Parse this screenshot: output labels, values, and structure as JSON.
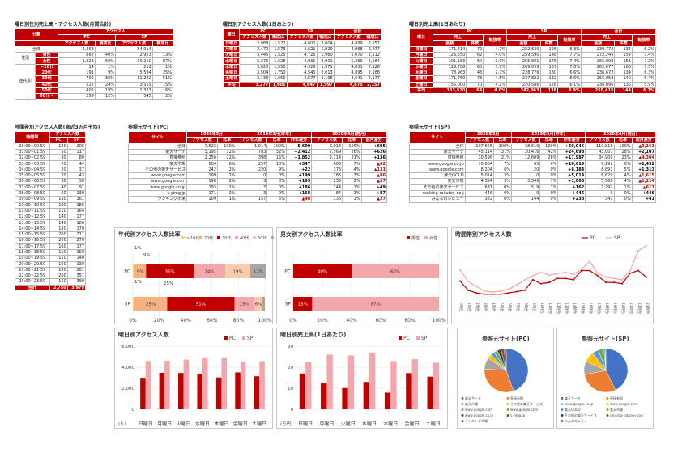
{
  "colors": {
    "red": "#c00000",
    "pink": "#f4a6ad",
    "light": "#fadbd8"
  },
  "t1": {
    "title": "曜日別性別売上高・アクセス人数(月間合計)",
    "head1": [
      "分類",
      "アクセス人"
    ],
    "head2": [
      "PC",
      "SP"
    ],
    "head3": [
      "アクセス人数",
      "構成比",
      "アクセス人数",
      "構成比"
    ],
    "rows": [
      [
        "全体",
        "",
        "4,468",
        "-",
        "54,914",
        "-"
      ],
      [
        "性別",
        "男性",
        "867",
        "40%",
        "2,953",
        "13%"
      ],
      [
        "",
        "女性",
        "1,323",
        "60%",
        "19,210",
        "87%"
      ],
      [
        "年代別",
        "～10代",
        "14",
        "1%",
        "212",
        "1%"
      ],
      [
        "",
        "20代",
        "191",
        "9%",
        "5,594",
        "25%"
      ],
      [
        "",
        "30代",
        "796",
        "36%",
        "11,282",
        "51%"
      ],
      [
        "",
        "40代",
        "522",
        "24%",
        "3,319",
        "15%"
      ],
      [
        "",
        "50代",
        "405",
        "19%",
        "1,323",
        "6%"
      ],
      [
        "",
        "60代～",
        "259",
        "12%",
        "545",
        "2%"
      ]
    ]
  },
  "t2": {
    "title": "曜日別アクセス人数(1日あたり)",
    "head1": [
      "曜日",
      "PC",
      "SP",
      "合計"
    ],
    "head2": [
      "アクセス人数",
      "構成比",
      "アクセス人数",
      "構成比",
      "アクセス人数",
      "構成比"
    ],
    "rows": [
      [
        "日曜日",
        "2,988",
        "1,522",
        "4,600",
        "2,004",
        "4,899",
        "2,157"
      ],
      [
        "月曜日",
        "3,470",
        "1,573",
        "4,621",
        "1,920",
        "4,968",
        "2,077"
      ],
      [
        "火曜日",
        "3,445",
        "1,525",
        "4,726",
        "1,960",
        "5,070",
        "2,112"
      ],
      [
        "水曜日",
        "3,375",
        "1,628",
        "4,931",
        "2,001",
        "5,269",
        "2,164"
      ],
      [
        "木曜日",
        "3,020",
        "1,550",
        "4,929",
        "1,971",
        "4,831",
        "2,126"
      ],
      [
        "金曜日",
        "3,504",
        "1,750",
        "4,545",
        "2,013",
        "4,895",
        "2,188"
      ],
      [
        "土曜日",
        "3,138",
        "1,660",
        "4,577",
        "2,108",
        "4,641",
        "2,177"
      ]
    ],
    "avg": [
      "平均",
      "3,277",
      "1,601",
      "4,647",
      "1,997",
      "4,875",
      "2,157"
    ]
  },
  "t3": {
    "title": "曜日別売上高(1日あたり)",
    "head1": [
      "曜日",
      "PC",
      "SP",
      "合計"
    ],
    "head2": [
      "売上",
      "転換率",
      "売上",
      "転換率",
      "売上",
      "転換率"
    ],
    "head3": [
      "金額",
      "件数",
      "金額",
      "件数",
      "金額",
      "件数"
    ],
    "rows": [
      [
        "日曜日",
        "171,414",
        "72",
        "4.7%",
        "222,630",
        "126",
        "6.3%",
        "239,772",
        "134",
        "6.2%"
      ],
      [
        "月曜日",
        "126,550",
        "62",
        "4.0%",
        "259,590",
        "148",
        "7.7%",
        "272,245",
        "154",
        "7.4%"
      ],
      [
        "火曜日",
        "101,163",
        "60",
        "3.9%",
        "255,881",
        "145",
        "7.4%",
        "265,998",
        "151",
        "7.2%"
      ],
      [
        "水曜日",
        "129,788",
        "60",
        "3.7%",
        "269,099",
        "157",
        "7.8%",
        "282,077",
        "163",
        "7.5%"
      ],
      [
        "木曜日",
        "78,963",
        "43",
        "2.7%",
        "228,776",
        "130",
        "6.6%",
        "236,672",
        "134",
        "6.3%"
      ],
      [
        "金曜日",
        "171,760",
        "78",
        "4.5%",
        "237,882",
        "132",
        "6.6%",
        "255,058",
        "140",
        "6.4%"
      ],
      [
        "土曜日",
        "155,000",
        "70",
        "4.2%",
        "220,586",
        "128",
        "6.1%",
        "236,096",
        "136",
        "5.9%"
      ]
    ],
    "avg": [
      "平均",
      "133,520",
      "64",
      "4.0%",
      "242,063",
      "138",
      "6.9%",
      "255,415",
      "144",
      "6.7%"
    ]
  },
  "t4": {
    "title": "時間帯別アクセス人数(直近3ヵ月平均)",
    "head1": [
      "時間帯",
      "アクセス人数"
    ],
    "head2": [
      "PC",
      "SP"
    ],
    "rows": [
      [
        "00:00~00:59",
        "120",
        "205"
      ],
      [
        "01:00~01:59",
        "50",
        "117"
      ],
      [
        "02:00~02:59",
        "30",
        "80"
      ],
      [
        "03:00~03:59",
        "20",
        "44"
      ],
      [
        "04:00~04:59",
        "20",
        "37"
      ],
      [
        "05:00~05:59",
        "20",
        "43"
      ],
      [
        "06:00~06:59",
        "30",
        "58"
      ],
      [
        "07:00~07:59",
        "40",
        "91"
      ],
      [
        "08:00~08:59",
        "50",
        "130"
      ],
      [
        "09:00~09:59",
        "130",
        "161"
      ],
      [
        "10:00~10:59",
        "100",
        "186"
      ],
      [
        "11:00~11:59",
        "110",
        "164"
      ],
      [
        "12:00~12:59",
        "140",
        "177"
      ],
      [
        "13:00~13:59",
        "140",
        "186"
      ],
      [
        "14:00~14:59",
        "130",
        "170"
      ],
      [
        "15:00~15:59",
        "200",
        "211"
      ],
      [
        "16:00~16:59",
        "200",
        "270"
      ],
      [
        "17:00~17:59",
        "160",
        "177"
      ],
      [
        "18:00~18:59",
        "110",
        "150"
      ],
      [
        "19:00~19:59",
        "110",
        "140"
      ],
      [
        "20:00~20:59",
        "100",
        "130"
      ],
      [
        "21:00~21:59",
        "180",
        "201"
      ],
      [
        "22:00~22:59",
        "200",
        "351"
      ],
      [
        "23:00~23:59",
        "150",
        "390"
      ]
    ],
    "sum": [
      "合計",
      "2,750",
      "3,979"
    ]
  },
  "t5": {
    "title": "参照元サイト(PC)",
    "head1": [
      "サイト",
      "2020年5月",
      "2019年5月(昨年)",
      "2020年4月(前月)"
    ],
    "head2": [
      "アクセス数",
      "比率",
      "アクセス数",
      "比率",
      "昨年差分",
      "アクセス数",
      "比率",
      "前月差分"
    ],
    "rows": [
      [
        "全体",
        "7,523",
        "100%",
        "1,914",
        "100%",
        "+5,609",
        "6,918",
        "100%",
        "+605"
      ],
      [
        "楽天サーチ",
        "3,195",
        "32%",
        "783",
        "32%",
        "+2,412",
        "2,569",
        "26%",
        "+626"
      ],
      [
        "直接参照",
        "2,250",
        "22%",
        "398",
        "15%",
        "+1,852",
        "2,114",
        "21%",
        "+136"
      ],
      [
        "楽天市場",
        "604",
        "6%",
        "257",
        "10%",
        "+347",
        "666",
        "7%",
        "▲62"
      ],
      [
        "その他の楽天サービス",
        "242",
        "2%",
        "220",
        "9%",
        "+22",
        "373",
        "4%",
        "▲131"
      ],
      [
        "www.google.com",
        "199",
        "2%",
        "0",
        "0%",
        "+199",
        "285",
        "3%",
        "▲86"
      ],
      [
        "www.google.com",
        "198",
        "2%",
        "3",
        "0%",
        "+195",
        "235",
        "2%",
        "▲37"
      ],
      [
        "www.google.co.jp",
        "193",
        "2%",
        "7",
        "0%",
        "+186",
        "144",
        "1%",
        "+49"
      ],
      [
        "s.yimg.jp",
        "171",
        "2%",
        "3",
        "0%",
        "+168",
        "84",
        "1%",
        "+87"
      ],
      [
        "ランキング市場",
        "109",
        "1%",
        "157",
        "6%",
        "▲48",
        "136",
        "1%",
        "▲27"
      ]
    ]
  },
  "t6": {
    "title": "参照元サイト(SP)",
    "head1": [
      "サイト",
      "2020年5月",
      "2019年5月(昨年)",
      "2020年4月(前月)"
    ],
    "head2": [
      "アクセス数",
      "比率",
      "アクセス数",
      "比率",
      "昨年差分",
      "アクセス数",
      "比率",
      "前月差分"
    ],
    "rows": [
      [
        "全体",
        "107,655",
        "100%",
        "38,610",
        "100%",
        "+69,045",
        "110,816",
        "100%",
        "▲3,161"
      ],
      [
        "楽天サーチ",
        "45,114",
        "31%",
        "20,416",
        "42%",
        "+24,698",
        "43,007",
        "28%",
        "+2,107"
      ],
      [
        "直接参照",
        "30,596",
        "21%",
        "12,609",
        "26%",
        "+17,987",
        "34,900",
        "23%",
        "▲4,304"
      ],
      [
        "www.google.co.jp",
        "10,684",
        "7%",
        "65",
        "0%",
        "+10,619",
        "9,192",
        "6%",
        "+1,492"
      ],
      [
        "www.google.com",
        "8,204",
        "6%",
        "20",
        "0%",
        "+8,184",
        "6,891",
        "5%",
        "+1,313"
      ],
      [
        "楽天GOLD",
        "5,014",
        "3%",
        "0",
        "0%",
        "+5,014",
        "6,629",
        "4%",
        "▲1,615"
      ],
      [
        "楽天市場",
        "4,354",
        "3%",
        "3,346",
        "7%",
        "+1,008",
        "5,568",
        "4%",
        "▲1,214"
      ],
      [
        "その他の楽天サービス",
        "681",
        "0%",
        "519",
        "1%",
        "+162",
        "1,292",
        "1%",
        "▲611"
      ],
      [
        "ranking-rakuten-co-j",
        "446",
        "0%",
        "0",
        "0%",
        "+446",
        "0",
        "0%",
        "+446"
      ],
      [
        "みんなのレビュー",
        "382",
        "0%",
        "144",
        "0%",
        "+238",
        "341",
        "0%",
        "+41"
      ]
    ]
  },
  "c1": {
    "title": "年代別アクセス人数比率",
    "legend": [
      "～10代",
      "20代",
      "30代",
      "40代",
      "50代",
      "60代～"
    ],
    "colors": [
      "#ffd966",
      "#f4b183",
      "#c00000",
      "#f4a6ad",
      "#f8cbad",
      "#a6a6a6"
    ],
    "rows": [
      {
        "name": "PC",
        "values": [
          1,
          9,
          36,
          24,
          19,
          12
        ],
        "labels": [
          "1%",
          "9%",
          "36%",
          "24%",
          "19%",
          "12%"
        ]
      },
      {
        "name": "SP",
        "values": [
          1,
          25,
          51,
          15,
          6,
          2
        ],
        "labels": [
          "1%",
          "25%",
          "51%",
          "15%",
          "6%",
          "2%"
        ]
      }
    ],
    "xticks": [
      "0%",
      "20%",
      "40%",
      "60%",
      "80%",
      "100%"
    ]
  },
  "c2": {
    "title": "男女別アクセス人数比率",
    "legend": [
      "男性",
      "女性"
    ],
    "colors": [
      "#c00000",
      "#f4a6ad"
    ],
    "rows": [
      {
        "name": "PC",
        "values": [
          40,
          60
        ],
        "labels": [
          "40%",
          "60%"
        ]
      },
      {
        "name": "SP",
        "values": [
          13,
          87
        ],
        "labels": [
          "13%",
          "87%"
        ]
      }
    ],
    "xticks": [
      "0%",
      "20%",
      "40%",
      "60%",
      "80%",
      "100%"
    ]
  },
  "c3": {
    "title": "時間帯別アクセス人数",
    "legend": [
      "PC",
      "SP"
    ],
    "pc": [
      120,
      50,
      30,
      20,
      20,
      20,
      30,
      40,
      50,
      130,
      100,
      110,
      140,
      140,
      130,
      200,
      200,
      160,
      110,
      110,
      100,
      180,
      200,
      150
    ],
    "sp": [
      205,
      117,
      80,
      44,
      37,
      43,
      58,
      91,
      130,
      161,
      186,
      164,
      177,
      186,
      170,
      211,
      270,
      177,
      150,
      140,
      130,
      201,
      351,
      390
    ],
    "xlabels": [
      "0時台",
      "1時台",
      "2時台",
      "3時台",
      "4時台",
      "5時台",
      "6時台",
      "7時台",
      "8時台",
      "9時台",
      "10時台",
      "11時台",
      "12時台",
      "13時台",
      "14時台",
      "15時台",
      "16時台",
      "17時台",
      "18時台",
      "19時台",
      "20時台",
      "21時台",
      "22時台",
      "23時台"
    ]
  },
  "c4": {
    "title": "曜日別アクセス人数",
    "legend": [
      "PC",
      "SP"
    ],
    "unit": "(人)",
    "categories": [
      "日曜日",
      "月曜日",
      "火曜日",
      "水曜日",
      "木曜日",
      "金曜日",
      "土曜日"
    ],
    "pc": [
      2988,
      3470,
      3445,
      3375,
      3020,
      3504,
      3138
    ],
    "sp": [
      4600,
      4621,
      4726,
      4931,
      4929,
      4545,
      4577
    ],
    "yticks": [
      "0",
      "2,000",
      "4,000",
      "6,000"
    ],
    "ymax": 6000
  },
  "c5": {
    "title": "曜日別売上高(1日あたり)",
    "legend": [
      "PC",
      "SP"
    ],
    "unit": "(万円)",
    "categories": [
      "日曜日",
      "月曜日",
      "火曜日",
      "水曜日",
      "木曜日",
      "金曜日",
      "土曜日"
    ],
    "pc": [
      17,
      12.7,
      10.1,
      13,
      7.9,
      17.2,
      15.5
    ],
    "sp": [
      22.3,
      26,
      25.6,
      26.9,
      22.9,
      23.8,
      22.1
    ],
    "yticks": [
      "0",
      "10",
      "20",
      "30"
    ],
    "ymax": 30
  },
  "c6": {
    "title": "参照元サイト(PC)",
    "values": [
      3195,
      2250,
      604,
      242,
      199,
      198,
      193,
      171,
      109
    ],
    "labels": [
      "楽天サーチ",
      "直接参照",
      "楽天市場",
      "その他の楽天サービス",
      "www.google.com",
      "www.google.com",
      "www.google.co.jp",
      "s.yimg.jp",
      "ランキング市場"
    ],
    "colors": [
      "#4472c4",
      "#ed7d31",
      "#a5a5a5",
      "#ffc000",
      "#5b9bd5",
      "#70ad47",
      "#264478",
      "#9e480e",
      "#636363"
    ]
  },
  "c7": {
    "title": "参照元サイト(SP)",
    "values": [
      45114,
      30596,
      10684,
      8204,
      5014,
      4354,
      681,
      446,
      382
    ],
    "labels": [
      "楽天サーチ",
      "直接参照",
      "www.google.co.jp",
      "www.google.com",
      "楽天GOLD",
      "楽天市場",
      "その他の楽天サービス",
      "ranking-rakuten-co-j",
      "みんなのレビュー"
    ],
    "colors": [
      "#4472c4",
      "#ed7d31",
      "#a5a5a5",
      "#ffc000",
      "#5b9bd5",
      "#70ad47",
      "#264478",
      "#9e480e",
      "#636363"
    ]
  }
}
